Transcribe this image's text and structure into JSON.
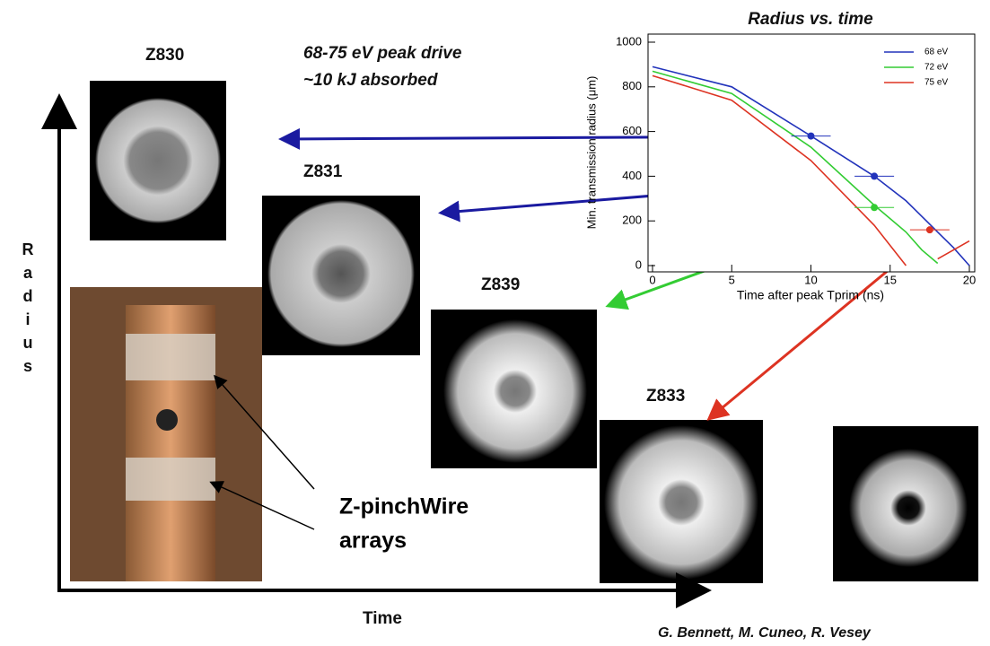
{
  "slide": {
    "drive": "68-75 eV peak drive",
    "absorbed": "~10 kJ absorbed",
    "shots": [
      "Z830",
      "Z831",
      "Z839",
      "Z833"
    ],
    "y_axis": "Radius",
    "x_axis": "Time",
    "photo_caption": [
      "Z-pinchWire",
      "arrays"
    ],
    "credit": "G. Bennett, M. Cuneo, R. Vesey"
  },
  "chart_data": {
    "type": "line",
    "title": "Radius vs. time",
    "x_label": "Time after peak Tprim (ns)",
    "y_label": "Min. transmission radius (μm)",
    "x": [
      0,
      5,
      10,
      14,
      16,
      17,
      18,
      19,
      20
    ],
    "series": [
      {
        "name": "68 eV",
        "color": "#2233bb",
        "values": [
          890,
          800,
          580,
          400,
          290,
          220,
          150,
          80,
          0
        ]
      },
      {
        "name": "72 eV",
        "color": "#33cc33",
        "values": [
          870,
          770,
          530,
          270,
          150,
          70,
          10,
          null,
          null
        ]
      },
      {
        "name": "75 eV",
        "color": "#dd3322",
        "values": [
          850,
          740,
          470,
          180,
          0,
          null,
          30,
          70,
          110
        ]
      }
    ],
    "markers": [
      {
        "x": 10,
        "y": 580,
        "color": "#2233bb"
      },
      {
        "x": 14,
        "y": 400,
        "color": "#2233bb"
      },
      {
        "x": 14,
        "y": 260,
        "color": "#33cc33"
      },
      {
        "x": 17.5,
        "y": 160,
        "color": "#dd3322"
      }
    ],
    "xlim": [
      0,
      20
    ],
    "xticks": [
      0,
      5,
      10,
      15,
      20
    ],
    "ylim": [
      0,
      1000
    ],
    "yticks": [
      0,
      200,
      400,
      600,
      800,
      1000
    ]
  }
}
